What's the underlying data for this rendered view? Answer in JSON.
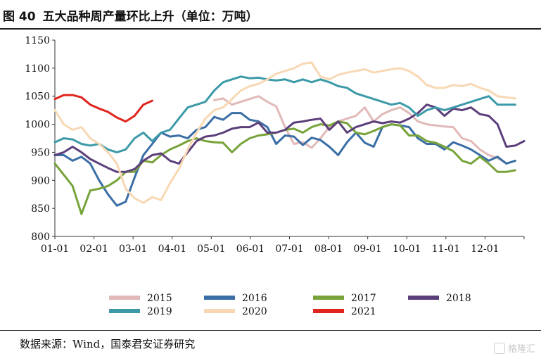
{
  "header": {
    "figure_number": "图 40",
    "title": "五大品种周产量环比上升（单位：万吨）"
  },
  "footer": {
    "source": "数据来源：Wind，国泰君安证券研究",
    "watermark": "格隆汇"
  },
  "chart_data": {
    "type": "line",
    "title": "五大品种周产量环比上升（单位：万吨）",
    "unit": "万吨",
    "xlabel": "",
    "ylabel": "",
    "x_ticks": [
      "01-01",
      "02-01",
      "03-01",
      "04-01",
      "05-01",
      "06-01",
      "07-01",
      "08-01",
      "09-01",
      "10-01",
      "11-01",
      "12-01"
    ],
    "x_range": [
      0,
      53
    ],
    "ylim": [
      800,
      1150
    ],
    "y_ticks": [
      800,
      850,
      900,
      950,
      1000,
      1050,
      1100,
      1150
    ],
    "grid": false,
    "legend_position": "bottom",
    "series": [
      {
        "name": "2015",
        "color": "#e2b9b9",
        "points": [
          [
            18,
            1043
          ],
          [
            19,
            1046
          ],
          [
            20,
            1035
          ],
          [
            21,
            1040
          ],
          [
            22,
            1045
          ],
          [
            23,
            1050
          ],
          [
            24,
            1040
          ],
          [
            25,
            1032
          ],
          [
            26,
            995
          ],
          [
            27,
            965
          ],
          [
            28,
            968
          ],
          [
            29,
            958
          ],
          [
            30,
            975
          ],
          [
            31,
            995
          ],
          [
            32,
            1005
          ],
          [
            33,
            1010
          ],
          [
            34,
            1015
          ],
          [
            35,
            1030
          ],
          [
            36,
            1005
          ],
          [
            37,
            1018
          ],
          [
            38,
            1025
          ],
          [
            39,
            1030
          ],
          [
            40,
            1020
          ],
          [
            41,
            1005
          ],
          [
            42,
            1000
          ],
          [
            43,
            998
          ],
          [
            44,
            996
          ],
          [
            45,
            995
          ],
          [
            46,
            975
          ],
          [
            47,
            970
          ],
          [
            48,
            955
          ],
          [
            49,
            945
          ],
          [
            50,
            940
          ],
          [
            51,
            930
          ]
        ]
      },
      {
        "name": "2016",
        "color": "#3a6ea5",
        "points": [
          [
            0,
            945
          ],
          [
            1,
            945
          ],
          [
            2,
            935
          ],
          [
            3,
            942
          ],
          [
            4,
            930
          ],
          [
            5,
            900
          ],
          [
            6,
            875
          ],
          [
            7,
            855
          ],
          [
            8,
            862
          ],
          [
            9,
            905
          ],
          [
            10,
            945
          ],
          [
            11,
            965
          ],
          [
            12,
            985
          ],
          [
            13,
            978
          ],
          [
            14,
            980
          ],
          [
            15,
            975
          ],
          [
            16,
            990
          ],
          [
            17,
            995
          ],
          [
            18,
            1013
          ],
          [
            19,
            1008
          ],
          [
            20,
            1020
          ],
          [
            21,
            1020
          ],
          [
            22,
            1008
          ],
          [
            23,
            1005
          ],
          [
            24,
            995
          ],
          [
            25,
            965
          ],
          [
            26,
            980
          ],
          [
            27,
            978
          ],
          [
            28,
            963
          ],
          [
            29,
            976
          ],
          [
            30,
            972
          ],
          [
            31,
            960
          ],
          [
            32,
            945
          ],
          [
            33,
            968
          ],
          [
            34,
            985
          ],
          [
            35,
            967
          ],
          [
            36,
            960
          ],
          [
            37,
            995
          ],
          [
            38,
            1000
          ],
          [
            39,
            998
          ],
          [
            40,
            995
          ],
          [
            41,
            975
          ],
          [
            42,
            965
          ],
          [
            43,
            965
          ],
          [
            44,
            955
          ],
          [
            45,
            968
          ],
          [
            46,
            962
          ],
          [
            47,
            955
          ],
          [
            48,
            945
          ],
          [
            49,
            935
          ],
          [
            50,
            942
          ],
          [
            51,
            930
          ],
          [
            52,
            935
          ]
        ]
      },
      {
        "name": "2017",
        "color": "#77a33a",
        "points": [
          [
            0,
            930
          ],
          [
            1,
            910
          ],
          [
            2,
            890
          ],
          [
            3,
            840
          ],
          [
            4,
            882
          ],
          [
            5,
            885
          ],
          [
            6,
            890
          ],
          [
            7,
            900
          ],
          [
            8,
            915
          ],
          [
            9,
            915
          ],
          [
            10,
            935
          ],
          [
            11,
            932
          ],
          [
            12,
            945
          ],
          [
            13,
            955
          ],
          [
            14,
            962
          ],
          [
            15,
            970
          ],
          [
            16,
            975
          ],
          [
            17,
            970
          ],
          [
            18,
            968
          ],
          [
            19,
            967
          ],
          [
            20,
            950
          ],
          [
            21,
            965
          ],
          [
            22,
            975
          ],
          [
            23,
            980
          ],
          [
            24,
            982
          ],
          [
            25,
            985
          ],
          [
            26,
            990
          ],
          [
            27,
            992
          ],
          [
            28,
            985
          ],
          [
            29,
            995
          ],
          [
            30,
            1000
          ],
          [
            31,
            998
          ],
          [
            32,
            1005
          ],
          [
            33,
            1002
          ],
          [
            34,
            985
          ],
          [
            35,
            982
          ],
          [
            36,
            988
          ],
          [
            37,
            995
          ],
          [
            38,
            1000
          ],
          [
            39,
            998
          ],
          [
            40,
            980
          ],
          [
            41,
            980
          ],
          [
            42,
            970
          ],
          [
            43,
            967
          ],
          [
            44,
            960
          ],
          [
            45,
            952
          ],
          [
            46,
            935
          ],
          [
            47,
            930
          ],
          [
            48,
            942
          ],
          [
            49,
            930
          ],
          [
            50,
            915
          ],
          [
            51,
            915
          ],
          [
            52,
            918
          ]
        ]
      },
      {
        "name": "2018",
        "color": "#5c3f7a",
        "points": [
          [
            0,
            945
          ],
          [
            1,
            950
          ],
          [
            2,
            960
          ],
          [
            3,
            950
          ],
          [
            4,
            938
          ],
          [
            5,
            930
          ],
          [
            6,
            922
          ],
          [
            7,
            915
          ],
          [
            8,
            915
          ],
          [
            9,
            920
          ],
          [
            10,
            935
          ],
          [
            11,
            945
          ],
          [
            12,
            948
          ],
          [
            13,
            935
          ],
          [
            14,
            930
          ],
          [
            15,
            950
          ],
          [
            16,
            970
          ],
          [
            17,
            978
          ],
          [
            18,
            980
          ],
          [
            19,
            985
          ],
          [
            20,
            992
          ],
          [
            21,
            995
          ],
          [
            22,
            995
          ],
          [
            23,
            1003
          ],
          [
            24,
            985
          ],
          [
            25,
            985
          ],
          [
            26,
            990
          ],
          [
            27,
            1003
          ],
          [
            28,
            1005
          ],
          [
            29,
            1008
          ],
          [
            30,
            1010
          ],
          [
            31,
            990
          ],
          [
            32,
            1005
          ],
          [
            33,
            985
          ],
          [
            34,
            995
          ],
          [
            35,
            1000
          ],
          [
            36,
            1005
          ],
          [
            37,
            1002
          ],
          [
            38,
            1005
          ],
          [
            39,
            1003
          ],
          [
            40,
            1010
          ],
          [
            41,
            1020
          ],
          [
            42,
            1035
          ],
          [
            43,
            1030
          ],
          [
            44,
            1015
          ],
          [
            45,
            1028
          ],
          [
            46,
            1025
          ],
          [
            47,
            1030
          ],
          [
            48,
            1018
          ],
          [
            49,
            1015
          ],
          [
            50,
            1000
          ],
          [
            51,
            960
          ],
          [
            52,
            962
          ],
          [
            53,
            970
          ]
        ]
      },
      {
        "name": "2019",
        "color": "#3c9aa8",
        "points": [
          [
            0,
            968
          ],
          [
            1,
            975
          ],
          [
            2,
            973
          ],
          [
            3,
            965
          ],
          [
            4,
            962
          ],
          [
            5,
            965
          ],
          [
            6,
            955
          ],
          [
            7,
            950
          ],
          [
            8,
            955
          ],
          [
            9,
            975
          ],
          [
            10,
            985
          ],
          [
            11,
            970
          ],
          [
            12,
            985
          ],
          [
            13,
            990
          ],
          [
            14,
            1010
          ],
          [
            15,
            1030
          ],
          [
            16,
            1035
          ],
          [
            17,
            1040
          ],
          [
            18,
            1060
          ],
          [
            19,
            1075
          ],
          [
            20,
            1080
          ],
          [
            21,
            1085
          ],
          [
            22,
            1082
          ],
          [
            23,
            1083
          ],
          [
            24,
            1080
          ],
          [
            25,
            1078
          ],
          [
            26,
            1080
          ],
          [
            27,
            1075
          ],
          [
            28,
            1080
          ],
          [
            29,
            1075
          ],
          [
            30,
            1080
          ],
          [
            31,
            1075
          ],
          [
            32,
            1068
          ],
          [
            33,
            1065
          ],
          [
            34,
            1055
          ],
          [
            35,
            1050
          ],
          [
            36,
            1045
          ],
          [
            37,
            1040
          ],
          [
            38,
            1035
          ],
          [
            39,
            1038
          ],
          [
            40,
            1030
          ],
          [
            41,
            1015
          ],
          [
            42,
            1025
          ],
          [
            43,
            1030
          ],
          [
            44,
            1025
          ],
          [
            45,
            1030
          ],
          [
            46,
            1035
          ],
          [
            47,
            1040
          ],
          [
            48,
            1045
          ],
          [
            49,
            1050
          ],
          [
            50,
            1035
          ],
          [
            51,
            1035
          ],
          [
            52,
            1035
          ]
        ]
      },
      {
        "name": "2020",
        "color": "#f8d8b4",
        "points": [
          [
            0,
            1025
          ],
          [
            1,
            1000
          ],
          [
            2,
            990
          ],
          [
            3,
            995
          ],
          [
            4,
            975
          ],
          [
            5,
            965
          ],
          [
            6,
            950
          ],
          [
            7,
            930
          ],
          [
            8,
            885
          ],
          [
            9,
            868
          ],
          [
            10,
            860
          ],
          [
            11,
            870
          ],
          [
            12,
            865
          ],
          [
            13,
            895
          ],
          [
            14,
            920
          ],
          [
            15,
            955
          ],
          [
            16,
            985
          ],
          [
            17,
            1010
          ],
          [
            18,
            1025
          ],
          [
            19,
            1030
          ],
          [
            20,
            1045
          ],
          [
            21,
            1060
          ],
          [
            22,
            1068
          ],
          [
            23,
            1072
          ],
          [
            24,
            1080
          ],
          [
            25,
            1090
          ],
          [
            26,
            1095
          ],
          [
            27,
            1100
          ],
          [
            28,
            1108
          ],
          [
            29,
            1110
          ],
          [
            30,
            1085
          ],
          [
            31,
            1080
          ],
          [
            32,
            1088
          ],
          [
            33,
            1092
          ],
          [
            34,
            1095
          ],
          [
            35,
            1098
          ],
          [
            36,
            1092
          ],
          [
            37,
            1095
          ],
          [
            38,
            1098
          ],
          [
            39,
            1100
          ],
          [
            40,
            1095
          ],
          [
            41,
            1085
          ],
          [
            42,
            1070
          ],
          [
            43,
            1065
          ],
          [
            44,
            1065
          ],
          [
            45,
            1070
          ],
          [
            46,
            1068
          ],
          [
            47,
            1072
          ],
          [
            48,
            1065
          ],
          [
            49,
            1060
          ],
          [
            50,
            1050
          ],
          [
            51,
            1048
          ],
          [
            52,
            1046
          ]
        ]
      },
      {
        "name": "2021",
        "color": "#e0241e",
        "points": [
          [
            0,
            1045
          ],
          [
            1,
            1052
          ],
          [
            2,
            1052
          ],
          [
            3,
            1048
          ],
          [
            4,
            1035
          ],
          [
            5,
            1028
          ],
          [
            6,
            1022
          ],
          [
            7,
            1012
          ],
          [
            8,
            1005
          ],
          [
            9,
            1015
          ],
          [
            10,
            1035
          ],
          [
            11,
            1042
          ]
        ]
      }
    ]
  }
}
